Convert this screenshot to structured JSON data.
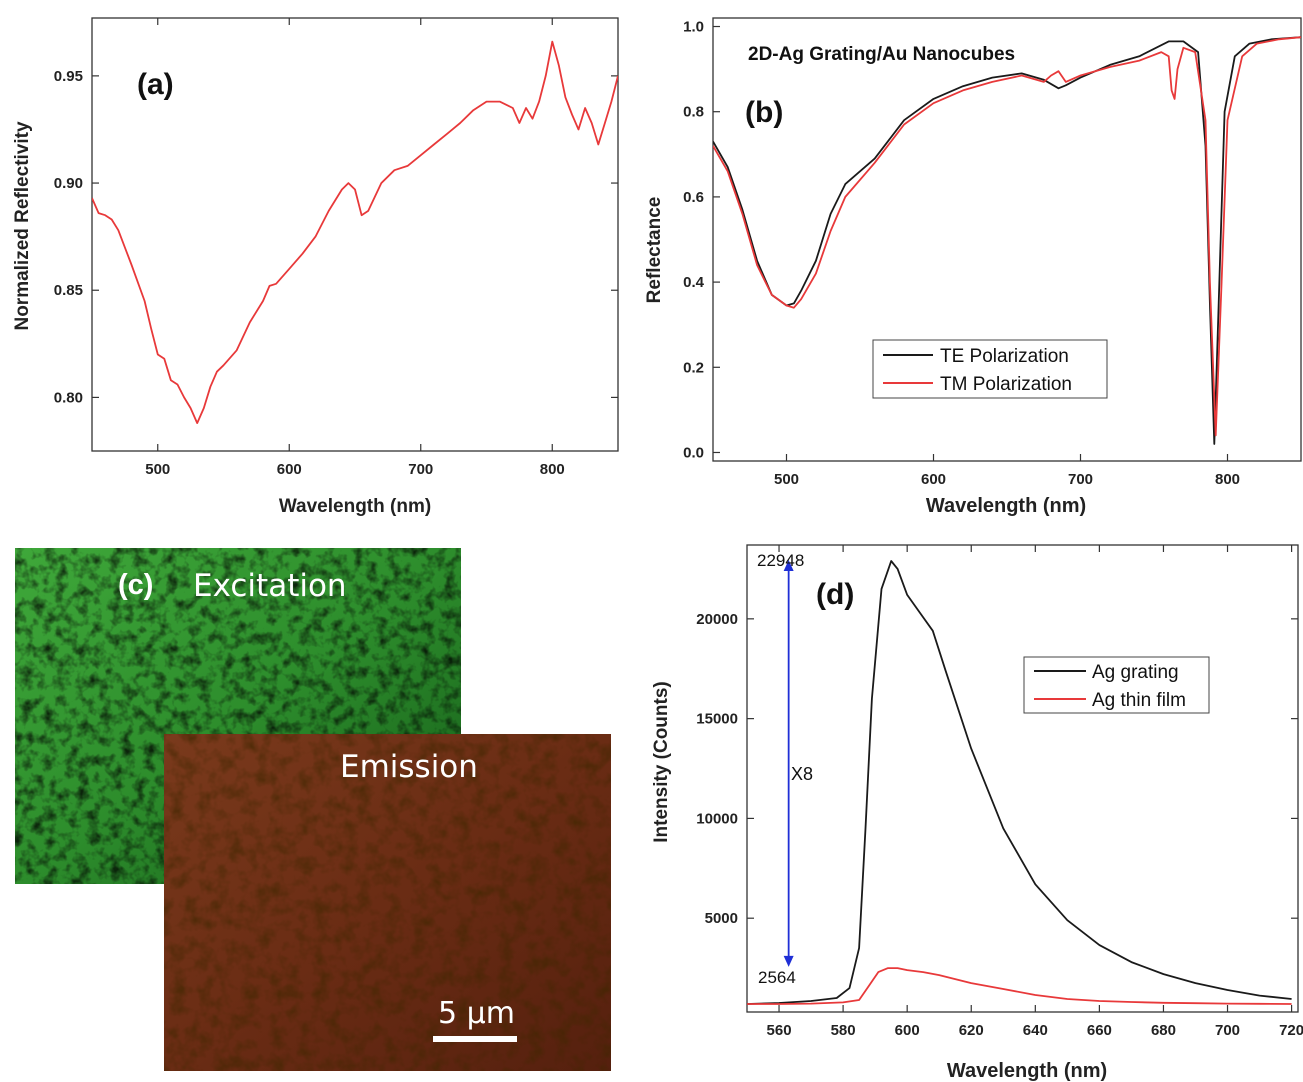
{
  "chart_data": [
    {
      "panel": "(a)",
      "type": "line",
      "title": "",
      "xlabel": "Wavelength (nm)",
      "ylabel": "Normalized Reflectivity",
      "xlim": [
        450,
        850
      ],
      "ylim": [
        0.775,
        0.977
      ],
      "xticks": [
        500,
        600,
        700,
        800
      ],
      "yticks": [
        0.8,
        0.85,
        0.9,
        0.95
      ],
      "ytick_labels": [
        "0.80",
        "0.85",
        "0.90",
        "0.95"
      ],
      "series": [
        {
          "color": "#e8393a",
          "x": [
            450,
            455,
            460,
            465,
            470,
            480,
            490,
            495,
            500,
            505,
            510,
            515,
            520,
            525,
            530,
            535,
            540,
            545,
            550,
            560,
            570,
            580,
            585,
            590,
            600,
            610,
            620,
            630,
            640,
            645,
            650,
            655,
            660,
            670,
            680,
            690,
            700,
            710,
            720,
            730,
            740,
            750,
            760,
            770,
            775,
            780,
            785,
            790,
            795,
            800,
            805,
            810,
            815,
            820,
            825,
            830,
            835,
            840,
            845,
            850
          ],
          "y": [
            0.893,
            0.886,
            0.885,
            0.883,
            0.878,
            0.862,
            0.845,
            0.832,
            0.82,
            0.818,
            0.808,
            0.806,
            0.8,
            0.795,
            0.788,
            0.795,
            0.805,
            0.812,
            0.815,
            0.822,
            0.835,
            0.845,
            0.852,
            0.853,
            0.86,
            0.867,
            0.875,
            0.887,
            0.897,
            0.9,
            0.897,
            0.885,
            0.887,
            0.9,
            0.906,
            0.908,
            0.913,
            0.918,
            0.923,
            0.928,
            0.934,
            0.938,
            0.938,
            0.935,
            0.928,
            0.935,
            0.93,
            0.938,
            0.95,
            0.966,
            0.955,
            0.94,
            0.932,
            0.925,
            0.935,
            0.928,
            0.918,
            0.928,
            0.938,
            0.95
          ]
        }
      ]
    },
    {
      "panel": "(b)",
      "type": "line",
      "title": "2D-Ag Grating/Au Nanocubes",
      "xlabel": "Wavelength (nm)",
      "ylabel": "Reflectance",
      "xlim": [
        450,
        850
      ],
      "ylim": [
        -0.02,
        1.02
      ],
      "xticks": [
        500,
        600,
        700,
        800
      ],
      "yticks": [
        0.0,
        0.2,
        0.4,
        0.6,
        0.8,
        1.0
      ],
      "ytick_labels": [
        "0.0",
        "0.2",
        "0.4",
        "0.6",
        "0.8",
        "1.0"
      ],
      "legend": "bottom-left",
      "series": [
        {
          "name": "TE Polarization",
          "color": "#1a1a1a",
          "x": [
            450,
            460,
            470,
            480,
            490,
            500,
            505,
            510,
            520,
            530,
            540,
            560,
            580,
            600,
            620,
            640,
            660,
            675,
            685,
            690,
            700,
            720,
            740,
            760,
            770,
            780,
            785,
            788,
            791,
            794,
            798,
            805,
            815,
            830,
            850
          ],
          "y": [
            0.73,
            0.67,
            0.57,
            0.45,
            0.37,
            0.345,
            0.35,
            0.38,
            0.45,
            0.56,
            0.63,
            0.69,
            0.78,
            0.83,
            0.86,
            0.88,
            0.89,
            0.875,
            0.855,
            0.862,
            0.88,
            0.91,
            0.93,
            0.965,
            0.965,
            0.94,
            0.72,
            0.35,
            0.02,
            0.35,
            0.8,
            0.93,
            0.96,
            0.97,
            0.975
          ]
        },
        {
          "name": "TM Polarization",
          "color": "#e8393a",
          "x": [
            450,
            460,
            470,
            480,
            490,
            500,
            505,
            510,
            520,
            530,
            540,
            560,
            580,
            600,
            620,
            640,
            660,
            675,
            680,
            685,
            690,
            700,
            720,
            740,
            755,
            760,
            762,
            764,
            766,
            770,
            778,
            785,
            788,
            792,
            796,
            800,
            810,
            820,
            835,
            850
          ],
          "y": [
            0.72,
            0.66,
            0.56,
            0.44,
            0.37,
            0.345,
            0.34,
            0.36,
            0.42,
            0.52,
            0.6,
            0.68,
            0.77,
            0.82,
            0.85,
            0.87,
            0.885,
            0.87,
            0.885,
            0.895,
            0.87,
            0.885,
            0.905,
            0.92,
            0.94,
            0.93,
            0.85,
            0.83,
            0.9,
            0.95,
            0.94,
            0.78,
            0.4,
            0.04,
            0.4,
            0.78,
            0.93,
            0.96,
            0.97,
            0.975
          ]
        }
      ]
    },
    {
      "panel": "(d)",
      "type": "line",
      "title": "",
      "xlabel": "Wavelength (nm)",
      "ylabel": "Intensity (Counts)",
      "xlim": [
        550,
        722
      ],
      "ylim": [
        300,
        23700
      ],
      "xticks": [
        560,
        580,
        600,
        620,
        640,
        660,
        680,
        700,
        720
      ],
      "yticks": [
        5000,
        10000,
        15000,
        20000
      ],
      "legend": "top-right",
      "annotations": {
        "top_value": "22948",
        "bottom_value": "2564",
        "factor": "X8",
        "arrow_x": 563
      },
      "series": [
        {
          "name": "Ag grating",
          "color": "#1a1a1a",
          "x": [
            550,
            560,
            570,
            578,
            582,
            585,
            587,
            589,
            592,
            595,
            597,
            600,
            604,
            608,
            612,
            620,
            630,
            640,
            650,
            660,
            670,
            680,
            690,
            700,
            710,
            720
          ],
          "y": [
            700,
            750,
            850,
            1000,
            1500,
            3500,
            9500,
            16000,
            21500,
            22900,
            22500,
            21200,
            20300,
            19400,
            17400,
            13500,
            9500,
            6700,
            4900,
            3650,
            2800,
            2200,
            1750,
            1400,
            1120,
            950
          ]
        },
        {
          "name": "Ag thin film",
          "color": "#e8393a",
          "x": [
            550,
            560,
            570,
            580,
            585,
            588,
            591,
            594,
            597,
            600,
            605,
            610,
            620,
            630,
            640,
            650,
            660,
            670,
            680,
            690,
            700,
            710,
            720
          ],
          "y": [
            700,
            700,
            720,
            780,
            900,
            1600,
            2300,
            2500,
            2500,
            2400,
            2300,
            2150,
            1750,
            1450,
            1150,
            950,
            850,
            800,
            760,
            740,
            720,
            710,
            700
          ]
        }
      ]
    }
  ],
  "micrograph": {
    "panel_label": "(c)",
    "excitation_label": "Excitation",
    "emission_label": "Emission",
    "scale_bar_label": "5 μm"
  }
}
